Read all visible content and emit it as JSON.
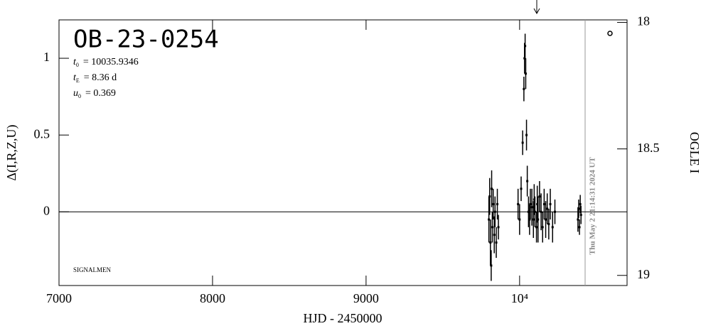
{
  "chart_data": {
    "type": "scatter",
    "title": "OB-23-0254",
    "params": [
      {
        "symbol": "t",
        "sub": "0",
        "text": "= 10035.9346"
      },
      {
        "symbol": "t",
        "sub": "E",
        "text": "= 8.36 d"
      },
      {
        "symbol": "u",
        "sub": "0",
        "text": "= 0.369"
      }
    ],
    "credit": "SIGNALMEN",
    "timestamp": "Thu May  2 21:14:31 2024 UT",
    "x_label": "HJD - 2450000",
    "y_label": "Δ(I,R,Z,U)",
    "y2_label": "OGLE I",
    "xlim": [
      7000,
      10700
    ],
    "xticks": [
      7000,
      8000,
      9000,
      {
        "value": 10000,
        "label": "10⁴"
      }
    ],
    "ylim": [
      -0.48,
      1.25
    ],
    "yticks": [
      0,
      0.5,
      1
    ],
    "y2lim": [
      17.99,
      19.04
    ],
    "y2ticks": [
      18,
      18.5,
      19
    ],
    "color": "#000000",
    "x": [
      9800,
      9805,
      9810,
      9815,
      9818,
      9822,
      9828,
      9835,
      9840,
      9848,
      9855,
      9862,
      9990,
      10000,
      10010,
      10020,
      10028,
      10032,
      10036,
      10040,
      10045,
      10050,
      10058,
      10065,
      10070,
      10080,
      10090,
      10095,
      10100,
      10110,
      10115,
      10120,
      10130,
      10140,
      10150,
      10160,
      10170,
      10180,
      10190,
      10200,
      10215,
      10230,
      10380,
      10385,
      10390,
      10395,
      10400
    ],
    "values": [
      -0.05,
      0.1,
      -0.2,
      -0.35,
      0.15,
      -0.1,
      0.05,
      -0.15,
      0.0,
      -0.2,
      0.05,
      -0.1,
      0.05,
      -0.05,
      0.15,
      0.45,
      0.8,
      1.0,
      1.08,
      0.9,
      0.5,
      0.2,
      0.0,
      -0.05,
      0.05,
      0.03,
      -0.05,
      0.08,
      0.0,
      -0.1,
      0.05,
      -0.05,
      0.1,
      0.0,
      -0.1,
      0.05,
      -0.05,
      0.02,
      -0.08,
      0.05,
      -0.1,
      0.0,
      -0.05,
      0.02,
      -0.1,
      0.05,
      -0.02
    ],
    "errors": [
      0.15,
      0.12,
      0.15,
      0.1,
      0.12,
      0.1,
      0.1,
      0.12,
      0.1,
      0.1,
      0.1,
      0.08,
      0.1,
      0.1,
      0.08,
      0.08,
      0.08,
      0.1,
      0.08,
      0.1,
      0.1,
      0.1,
      0.1,
      0.1,
      0.1,
      0.12,
      0.12,
      0.1,
      0.1,
      0.1,
      0.12,
      0.15,
      0.1,
      0.12,
      0.1,
      0.1,
      0.12,
      0.1,
      0.1,
      0.1,
      0.1,
      0.08,
      0.08,
      0.06,
      0.05,
      0.06,
      0.06
    ]
  }
}
